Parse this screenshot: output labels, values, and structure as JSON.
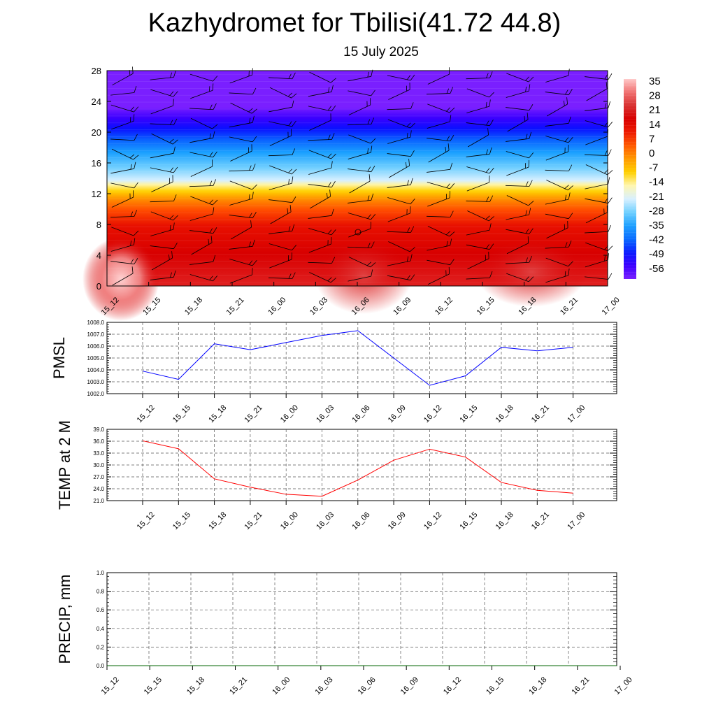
{
  "title": "Kazhydromet for Tbilisi(41.72 44.8)",
  "subtitle": "15 July 2025",
  "time_labels": [
    "15_12",
    "15_15",
    "15_18",
    "15_21",
    "16_00",
    "16_03",
    "16_06",
    "16_09",
    "16_12",
    "16_15",
    "16_18",
    "16_21",
    "17_00"
  ],
  "colors": {
    "pmsl_line": "#0000ff",
    "temp_line": "#ff0000",
    "precip_line": "#006400",
    "grid": "#555555",
    "colorbar": [
      "#7a1fff",
      "#3b00ff",
      "#0a1cff",
      "#0a6cff",
      "#1ea0ff",
      "#70d0ff",
      "#d8f0ff",
      "#fff6b0",
      "#ffd000",
      "#ff9a00",
      "#ff5a00",
      "#ee1a00",
      "#d80000",
      "#d83030",
      "#f07070",
      "#ffc8c8"
    ]
  },
  "chart_data": [
    {
      "type": "heatmap",
      "ylim": [
        0,
        28
      ],
      "yticks": [
        "0",
        "4",
        "8",
        "12",
        "16",
        "20",
        "24",
        "28"
      ],
      "x": [
        "15_12",
        "15_15",
        "15_18",
        "15_21",
        "16_00",
        "16_03",
        "16_06",
        "16_09",
        "16_12",
        "16_15",
        "16_18",
        "16_21",
        "17_00"
      ],
      "levels": [
        0,
        2,
        4,
        6,
        8,
        10,
        12,
        13.5,
        14,
        16,
        18,
        20,
        22,
        24,
        28
      ],
      "colorbar": {
        "ticks": [
          "35",
          "28",
          "21",
          "14",
          "7",
          "0",
          "-7",
          "-14",
          "-21",
          "-28",
          "-35",
          "-42",
          "-49",
          "-56"
        ],
        "range": [
          -60,
          38
        ]
      },
      "wind_barbs": true
    },
    {
      "type": "line",
      "ylabel": "PMSL",
      "ylim": [
        1002.0,
        1008.0
      ],
      "yticks": [
        "1002.0",
        "1003.0",
        "1004.0",
        "1005.0",
        "1006.0",
        "1007.0",
        "1008.0"
      ],
      "x": [
        "15_12",
        "15_15",
        "15_18",
        "15_21",
        "16_00",
        "16_03",
        "16_06",
        "16_09",
        "16_12",
        "16_15",
        "16_18",
        "16_21",
        "17_00"
      ],
      "values": [
        1003.9,
        1003.2,
        1006.2,
        1005.7,
        1006.3,
        1006.9,
        1007.3,
        1005.0,
        1002.7,
        1003.5,
        1005.9,
        1005.6,
        1005.9
      ],
      "grid": true
    },
    {
      "type": "line",
      "ylabel": "TEMP at 2 M",
      "ylim": [
        21.0,
        39.0
      ],
      "yticks": [
        "21.0",
        "24.0",
        "27.0",
        "30.0",
        "33.0",
        "36.0",
        "39.0"
      ],
      "x": [
        "15_12",
        "15_15",
        "15_18",
        "15_21",
        "16_00",
        "16_03",
        "16_06",
        "16_09",
        "16_12",
        "16_15",
        "16_18",
        "16_21",
        "17_00"
      ],
      "values": [
        36.1,
        34.1,
        26.5,
        24.4,
        22.6,
        22.1,
        26.2,
        31.2,
        34.0,
        32.0,
        25.6,
        23.6,
        22.9
      ],
      "grid": true
    },
    {
      "type": "line",
      "ylabel": "PRECIP, mm",
      "ylim": [
        0.0,
        1.0
      ],
      "yticks": [
        "0.0",
        "0.2",
        "0.4",
        "0.6",
        "0.8",
        "1.0"
      ],
      "x": [
        "15_12",
        "15_15",
        "15_18",
        "15_21",
        "16_00",
        "16_03",
        "16_06",
        "16_09",
        "16_12",
        "16_15",
        "16_18",
        "16_21",
        "17_00"
      ],
      "values": [
        0,
        0,
        0,
        0,
        0,
        0,
        0,
        0,
        0,
        0,
        0,
        0,
        0
      ],
      "grid": true
    }
  ]
}
